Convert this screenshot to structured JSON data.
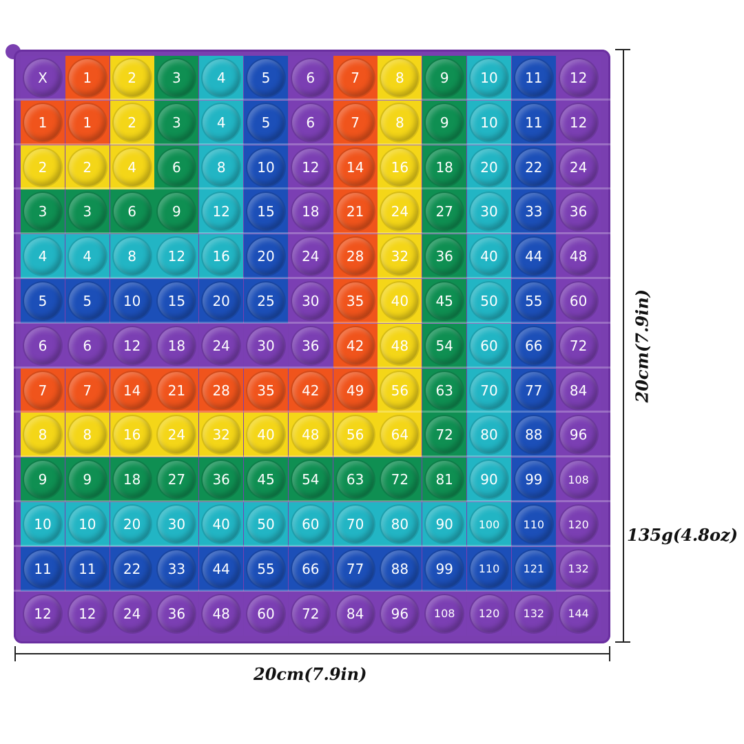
{
  "colors": [
    "#7b3fb3",
    "#f0541c",
    "#f4d618",
    "#0f8f52",
    "#22b5c4",
    "#1c4fb8",
    "#7b3fb3",
    "#f0541c",
    "#f4d618",
    "#0f8f52",
    "#22b5c4",
    "#1c4fb8",
    "#7b3fb3"
  ],
  "header": [
    "X",
    "1",
    "2",
    "3",
    "4",
    "5",
    "6",
    "7",
    "8",
    "9",
    "10",
    "11",
    "12"
  ],
  "rows": [
    [
      "1",
      "1",
      "2",
      "3",
      "4",
      "5",
      "6",
      "7",
      "8",
      "9",
      "10",
      "11",
      "12"
    ],
    [
      "2",
      "2",
      "4",
      "6",
      "8",
      "10",
      "12",
      "14",
      "16",
      "18",
      "20",
      "22",
      "24"
    ],
    [
      "3",
      "3",
      "6",
      "9",
      "12",
      "15",
      "18",
      "21",
      "24",
      "27",
      "30",
      "33",
      "36"
    ],
    [
      "4",
      "4",
      "8",
      "12",
      "16",
      "20",
      "24",
      "28",
      "32",
      "36",
      "40",
      "44",
      "48"
    ],
    [
      "5",
      "5",
      "10",
      "15",
      "20",
      "25",
      "30",
      "35",
      "40",
      "45",
      "50",
      "55",
      "60"
    ],
    [
      "6",
      "6",
      "12",
      "18",
      "24",
      "30",
      "36",
      "42",
      "48",
      "54",
      "60",
      "66",
      "72"
    ],
    [
      "7",
      "7",
      "14",
      "21",
      "28",
      "35",
      "42",
      "49",
      "56",
      "63",
      "70",
      "77",
      "84"
    ],
    [
      "8",
      "8",
      "16",
      "24",
      "32",
      "40",
      "48",
      "56",
      "64",
      "72",
      "80",
      "88",
      "96"
    ],
    [
      "9",
      "9",
      "18",
      "27",
      "36",
      "45",
      "54",
      "63",
      "72",
      "81",
      "90",
      "99",
      "108"
    ],
    [
      "10",
      "10",
      "20",
      "30",
      "40",
      "50",
      "60",
      "70",
      "80",
      "90",
      "100",
      "110",
      "120"
    ],
    [
      "11",
      "11",
      "22",
      "33",
      "44",
      "55",
      "66",
      "77",
      "88",
      "99",
      "110",
      "121",
      "132"
    ],
    [
      "12",
      "12",
      "24",
      "36",
      "48",
      "60",
      "72",
      "84",
      "96",
      "108",
      "120",
      "132",
      "144"
    ]
  ],
  "dimensions": {
    "width": "20cm(7.9in)",
    "height": "20cm(7.9in)",
    "weight": "135g(4.8oz)"
  }
}
